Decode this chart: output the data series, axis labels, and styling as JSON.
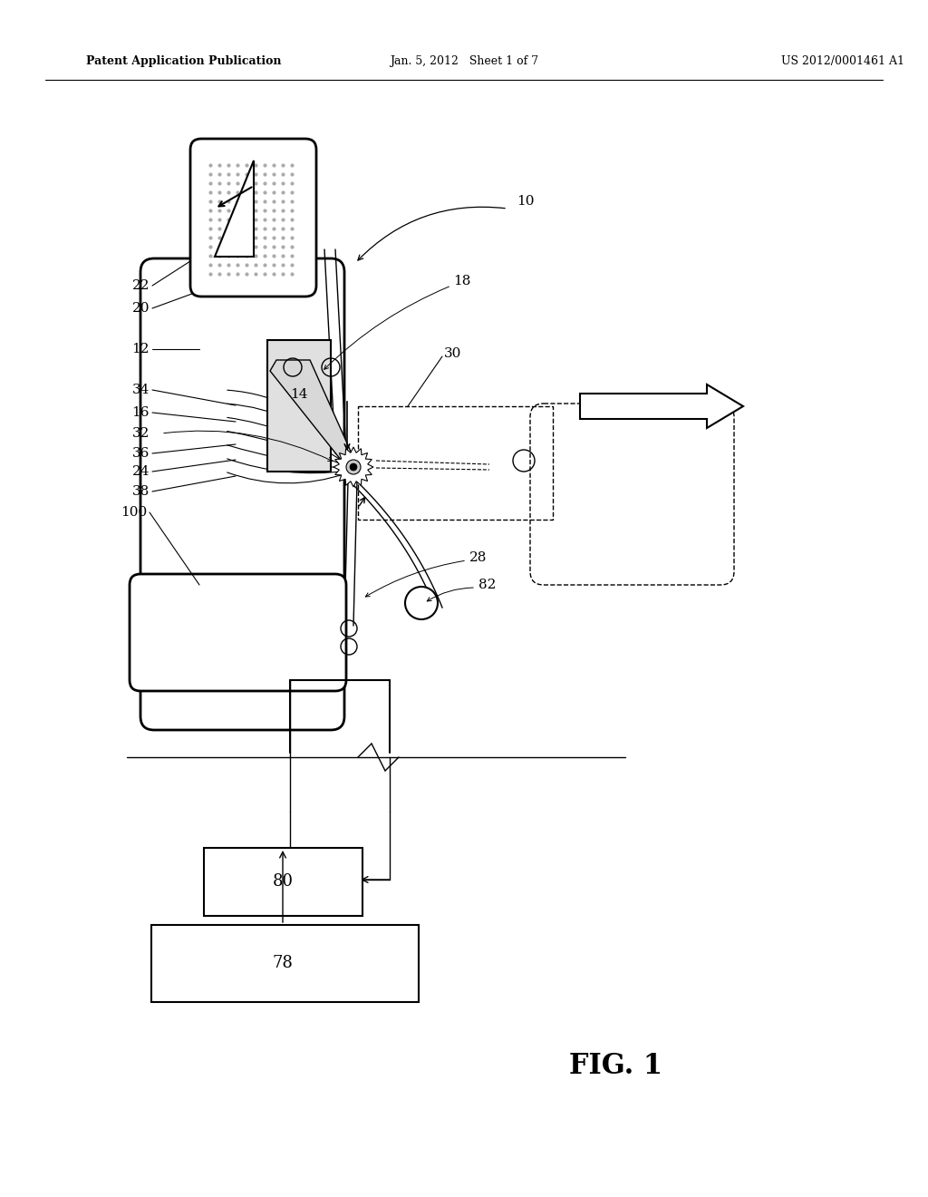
{
  "header_left": "Patent Application Publication",
  "header_center": "Jan. 5, 2012   Sheet 1 of 7",
  "header_right": "US 2012/0001461 A1",
  "fig_label": "FIG. 1",
  "background_color": "#ffffff",
  "line_color": "#000000"
}
